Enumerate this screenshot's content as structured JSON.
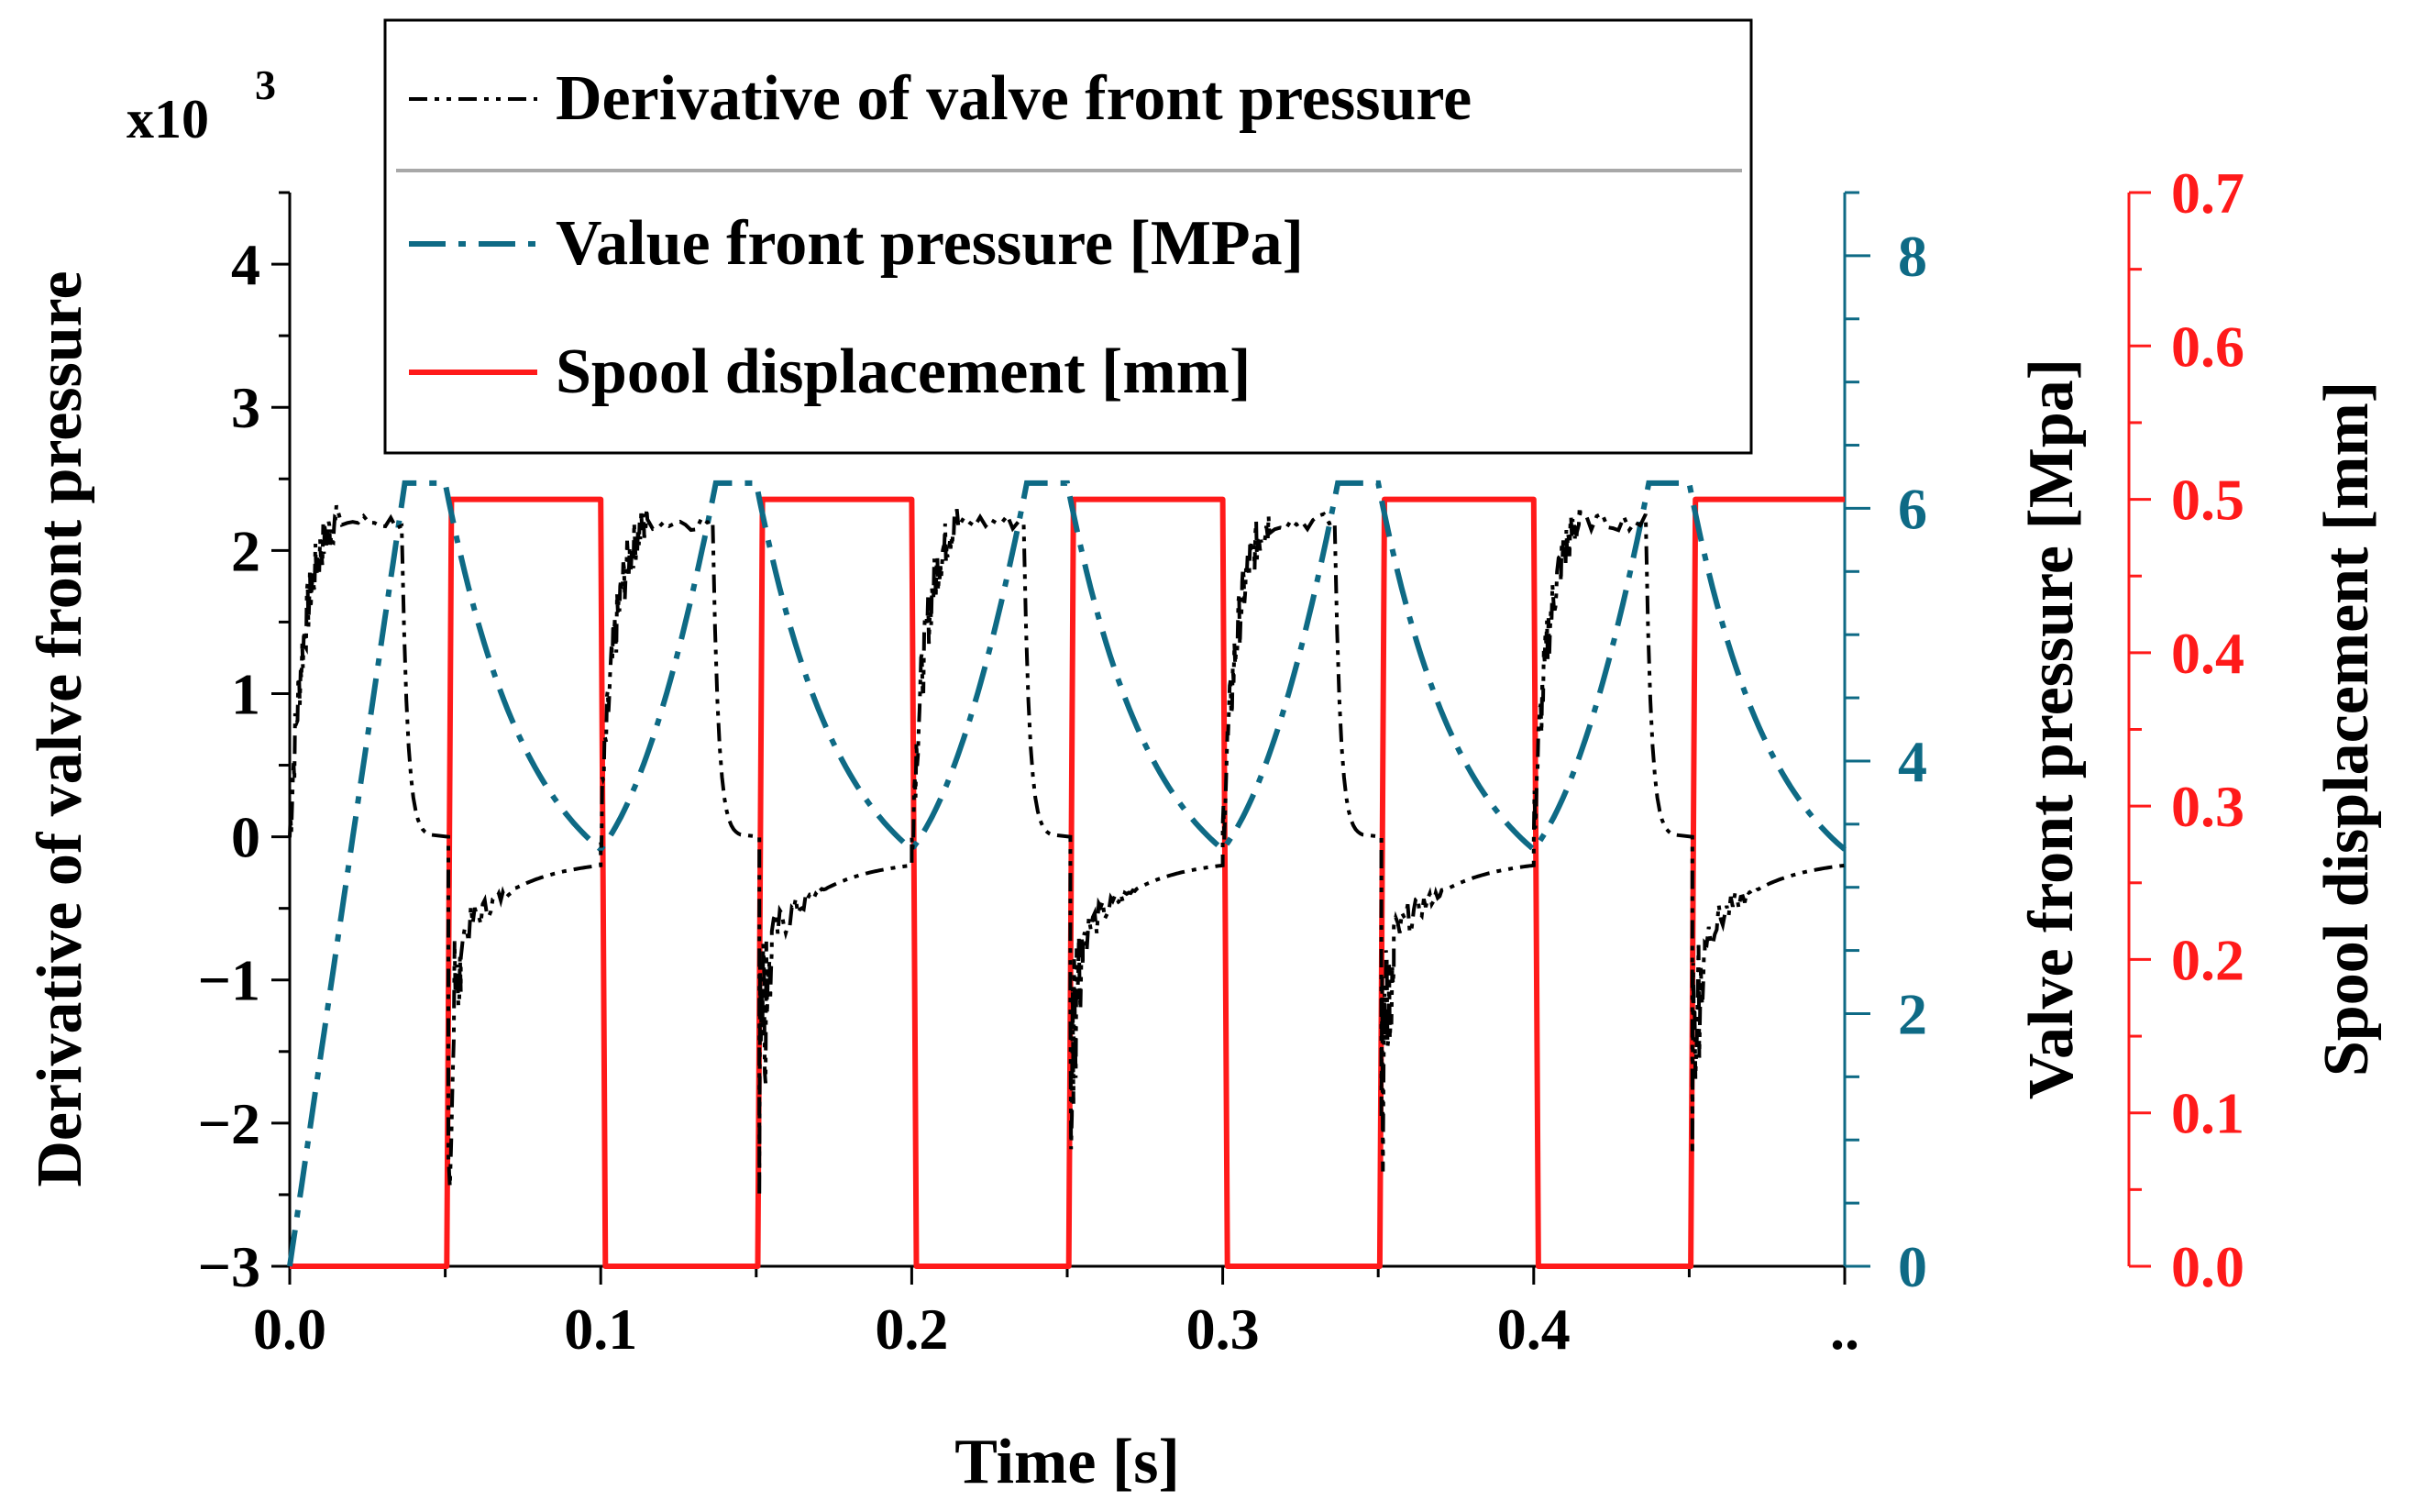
{
  "chart_data": {
    "type": "line",
    "x_axis": {
      "label": "Time [s]",
      "range": [
        0,
        0.5
      ],
      "ticks": [
        0.0,
        0.1,
        0.2,
        0.3,
        0.4,
        0.5
      ],
      "tick_labels": [
        "0.0",
        "0.1",
        "0.2",
        "0.3",
        "0.4",
        ".."
      ]
    },
    "y_left": {
      "label": "Derivative of valve front pressure",
      "multiplier_label": "x10",
      "multiplier_exponent": "3",
      "range": [
        -3,
        4.5
      ],
      "ticks": [
        -3,
        -2,
        -1,
        0,
        1,
        2,
        3,
        4
      ],
      "tick_labels": [
        "−3",
        "−2",
        "−1",
        "0",
        "1",
        "2",
        "3",
        "4"
      ],
      "color": "#000000"
    },
    "y_right1": {
      "label": "Valve front pressure [Mpa]",
      "range": [
        0,
        8.5
      ],
      "ticks": [
        0,
        2,
        4,
        6,
        8
      ],
      "tick_labels": [
        "0",
        "2",
        "4",
        "6",
        "8"
      ],
      "color": "#0e6a85"
    },
    "y_right2": {
      "label": "Spool displacement [mm]",
      "range": [
        0,
        0.7
      ],
      "ticks": [
        0.0,
        0.1,
        0.2,
        0.3,
        0.4,
        0.5,
        0.6,
        0.7
      ],
      "tick_labels": [
        "0.0",
        "0.1",
        "0.2",
        "0.3",
        "0.4",
        "0.5",
        "0.6",
        "0.7"
      ],
      "color": "#ff1a1a"
    },
    "series": [
      {
        "name": "Derivative of valve front pressure",
        "axis": "left",
        "color": "#000000",
        "style": "dash-dot-dot",
        "period": 0.1,
        "segments": [
          {
            "phase": "rise",
            "t_start": 0.0,
            "t_end": 0.015,
            "from": 0.0,
            "to": 2.2
          },
          {
            "phase": "plateau",
            "t_start": 0.015,
            "t_end": 0.036,
            "value": 2.2
          },
          {
            "phase": "drop",
            "t_start": 0.036,
            "t_end": 0.045,
            "from": 2.2,
            "to": 0.0
          },
          {
            "phase": "zero",
            "t_start": 0.045,
            "t_end": 0.051,
            "value": 0.0
          },
          {
            "phase": "negative-spike",
            "t_start": 0.051,
            "t_end": 0.055,
            "from": 0.0,
            "to": -2.7
          },
          {
            "phase": "recovery",
            "t_start": 0.055,
            "t_end": 0.1,
            "from": -0.7,
            "to": -0.2
          }
        ]
      },
      {
        "name": "Value front pressure [MPa]",
        "axis": "right1",
        "color": "#0e6a85",
        "style": "dash-dot",
        "period": 0.1,
        "segments": [
          {
            "phase": "rise",
            "t_start": 0.0,
            "t_end": 0.037,
            "from": 0.0,
            "to": 6.2
          },
          {
            "phase": "plateau",
            "t_start": 0.037,
            "t_end": 0.05,
            "value": 6.2
          },
          {
            "phase": "decay",
            "t_start": 0.05,
            "t_end": 0.1,
            "from": 6.2,
            "to": 3.3
          }
        ],
        "cycle_rise_from": 3.3
      },
      {
        "name": "Spool displacement [mm]",
        "axis": "right2",
        "color": "#ff1a1a",
        "style": "solid",
        "period": 0.1,
        "on_start": 0.052,
        "on_end": 0.1,
        "on_value": 0.5,
        "off_value": 0.0
      }
    ],
    "legend": {
      "position": "top-center",
      "entries": [
        "Derivative of valve front pressure",
        "Value front pressure [MPa]",
        "Spool displacement [mm]"
      ]
    }
  }
}
